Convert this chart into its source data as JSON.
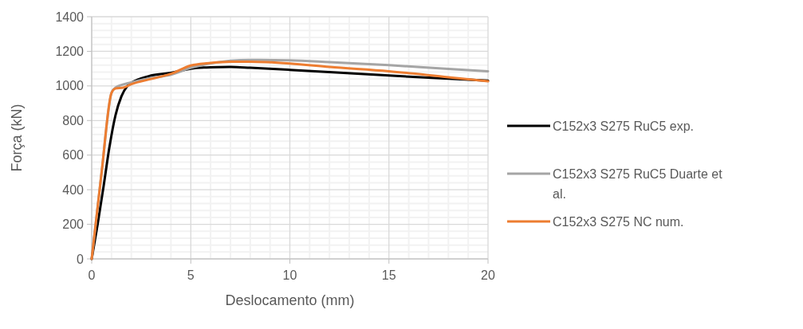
{
  "chart_data": {
    "type": "line",
    "xlabel": "Deslocamento (mm)",
    "ylabel": "Força (kN)",
    "xlim": [
      0,
      20
    ],
    "xticks": [
      0,
      5,
      10,
      15,
      20
    ],
    "ylim": [
      0,
      1400
    ],
    "yticks": [
      0,
      200,
      400,
      600,
      800,
      1000,
      1200,
      1400
    ],
    "grid": true,
    "legend": "right",
    "marker": "none",
    "line_style": "solid",
    "series": [
      {
        "name": "C152x3 S275 RuC5 exp.",
        "color": "#000000",
        "x": [
          0,
          0.3,
          0.6,
          0.9,
          1.2,
          1.5,
          1.8,
          2.2,
          3,
          4,
          5,
          6,
          7,
          8,
          10,
          12,
          15,
          18,
          20
        ],
        "values": [
          0,
          200,
          420,
          650,
          830,
          940,
          1000,
          1030,
          1060,
          1075,
          1100,
          1108,
          1110,
          1105,
          1093,
          1080,
          1060,
          1042,
          1030
        ]
      },
      {
        "name": "C152x3 S275 RuC5 Duarte et al.",
        "color": "#a5a5a5",
        "x": [
          0,
          0.5,
          1,
          1.2,
          2,
          3,
          4,
          5,
          6,
          8,
          10,
          12,
          15,
          18,
          20
        ],
        "values": [
          0,
          500,
          960,
          990,
          1020,
          1045,
          1065,
          1105,
          1130,
          1150,
          1148,
          1138,
          1120,
          1098,
          1085
        ]
      },
      {
        "name": "C152x3 S275 NC num.",
        "color": "#ed7d31",
        "x": [
          0,
          0.5,
          1,
          1.2,
          1.6,
          2,
          3,
          4,
          5,
          6,
          7,
          8,
          10,
          12,
          15,
          18,
          20
        ],
        "values": [
          0,
          500,
          960,
          985,
          990,
          1010,
          1040,
          1070,
          1118,
          1133,
          1140,
          1140,
          1130,
          1110,
          1085,
          1050,
          1027
        ]
      }
    ]
  }
}
